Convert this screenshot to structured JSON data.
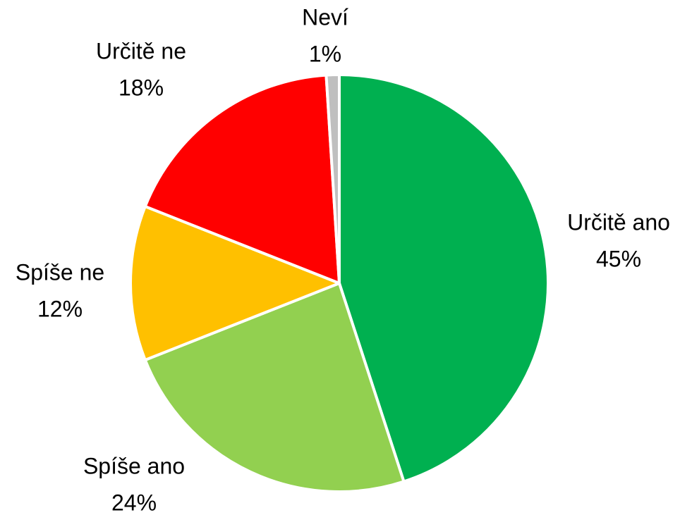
{
  "chart_data": {
    "type": "pie",
    "categories": [
      "Určitě ano",
      "Spíše ano",
      "Spíše ne",
      "Určitě ne",
      "Neví"
    ],
    "values": [
      45,
      24,
      12,
      18,
      1
    ],
    "value_labels": [
      "45%",
      "24%",
      "12%",
      "18%",
      "1%"
    ],
    "colors": [
      "#00b050",
      "#92d050",
      "#ffc000",
      "#ff0000",
      "#bfbfbf"
    ]
  }
}
